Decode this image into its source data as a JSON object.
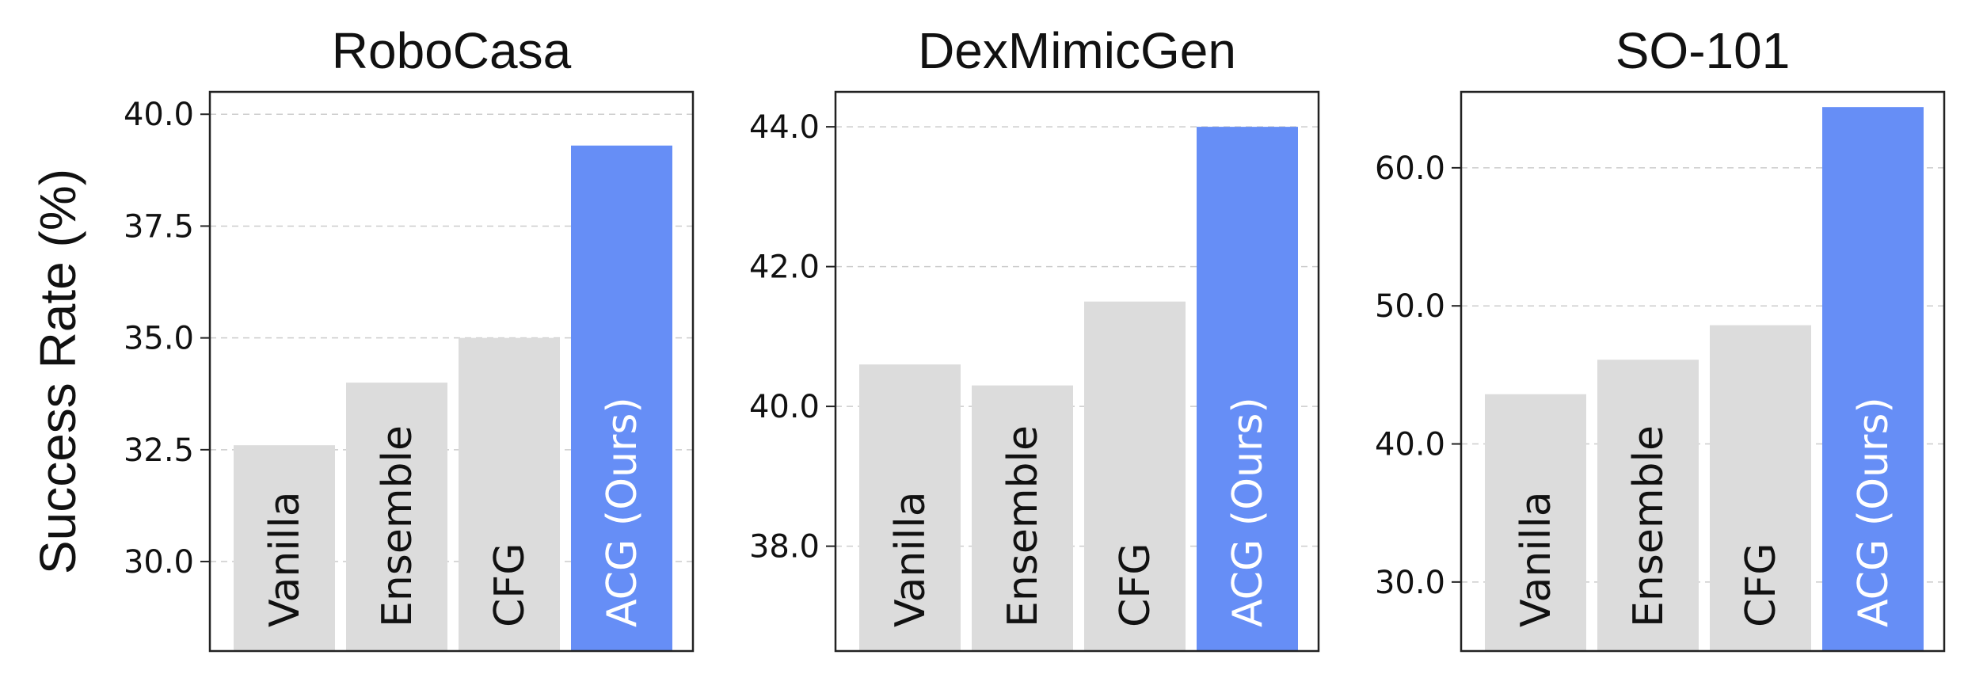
{
  "figure": {
    "ylabel": "Success Rate (%)"
  },
  "colors": {
    "baseline": "#dcdcdc",
    "ours": "#668ef6",
    "grid": "#cccccc",
    "axis": "#222222",
    "baseline_text": "#111111",
    "ours_text": "#ffffff"
  },
  "chart_data": [
    {
      "type": "bar",
      "title": "RoboCasa",
      "categories": [
        "Vanilla",
        "Ensemble",
        "CFG",
        "ACG (Ours)"
      ],
      "values": [
        32.6,
        34.0,
        35.0,
        39.3
      ],
      "ylim": [
        28.0,
        40.5
      ],
      "yticks": [
        30.0,
        32.5,
        35.0,
        37.5,
        40.0
      ],
      "ytick_labels": [
        "30.0",
        "32.5",
        "35.0",
        "37.5",
        "40.0"
      ],
      "grid": true
    },
    {
      "type": "bar",
      "title": "DexMimicGen",
      "categories": [
        "Vanilla",
        "Ensemble",
        "CFG",
        "ACG (Ours)"
      ],
      "values": [
        40.6,
        40.3,
        41.5,
        44.0
      ],
      "ylim": [
        36.5,
        44.5
      ],
      "yticks": [
        38.0,
        40.0,
        42.0,
        44.0
      ],
      "ytick_labels": [
        "38.0",
        "40.0",
        "42.0",
        "44.0"
      ],
      "grid": true
    },
    {
      "type": "bar",
      "title": "SO-101",
      "categories": [
        "Vanilla",
        "Ensemble",
        "CFG",
        "ACG (Ours)"
      ],
      "values": [
        43.6,
        46.1,
        48.6,
        64.4
      ],
      "ylim": [
        25.0,
        65.5
      ],
      "yticks": [
        30.0,
        40.0,
        50.0,
        60.0
      ],
      "ytick_labels": [
        "30.0",
        "40.0",
        "50.0",
        "60.0"
      ],
      "grid": true
    }
  ]
}
